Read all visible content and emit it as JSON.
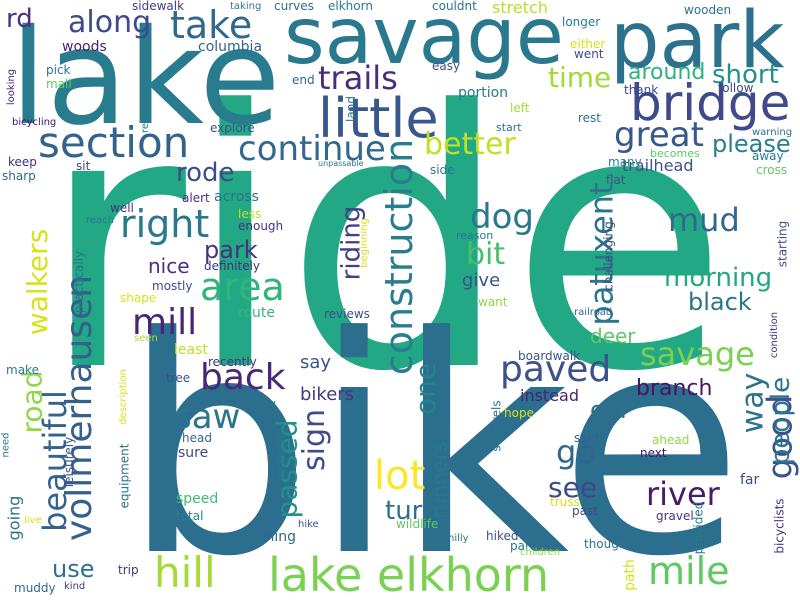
{
  "words": [
    {
      "text": "ride",
      "color": "#22a884"
    },
    {
      "text": "bike",
      "color": "#2c6e8e"
    },
    {
      "text": "lake",
      "color": "#287c8e"
    },
    {
      "text": "savage",
      "color": "#2a788e"
    },
    {
      "text": "park",
      "color": "#2d718e"
    },
    {
      "text": "lake elkhorn",
      "color": "#7ad151"
    },
    {
      "text": "bridge",
      "color": "#3e4a89"
    },
    {
      "text": "little",
      "color": "#38588c"
    },
    {
      "text": "section",
      "color": "#33638d"
    },
    {
      "text": "trails",
      "color": "#472d7b"
    },
    {
      "text": "take",
      "color": "#31688e"
    },
    {
      "text": "along",
      "color": "#3e4a89"
    },
    {
      "text": "continue",
      "color": "#31688e"
    },
    {
      "text": "right",
      "color": "#2a788e"
    },
    {
      "text": "area",
      "color": "#2fb47c"
    },
    {
      "text": "great",
      "color": "#38588c"
    },
    {
      "text": "better",
      "color": "#c2df23"
    },
    {
      "text": "time",
      "color": "#a2da37"
    },
    {
      "text": "short",
      "color": "#21918c"
    },
    {
      "text": "around",
      "color": "#2db27d"
    },
    {
      "text": "please",
      "color": "#277f8e"
    },
    {
      "text": "construction",
      "color": "#287d8e"
    },
    {
      "text": "vollmerhausen",
      "color": "#355f8d"
    },
    {
      "text": "road",
      "color": "#8fd744"
    },
    {
      "text": "walkers",
      "color": "#d8e219"
    },
    {
      "text": "beautiful",
      "color": "#33638d"
    },
    {
      "text": "mill",
      "color": "#482576"
    },
    {
      "text": "rode",
      "color": "#3e4c8a"
    },
    {
      "text": "patuxent",
      "color": "#2c738e"
    },
    {
      "text": "mud",
      "color": "#31688e"
    },
    {
      "text": "morning",
      "color": "#22a884"
    },
    {
      "text": "dog",
      "color": "#2a788e"
    },
    {
      "text": "bit",
      "color": "#44bf70"
    },
    {
      "text": "savage",
      "color": "#7ad151"
    },
    {
      "text": "back",
      "color": "#482878"
    },
    {
      "text": "paved",
      "color": "#3b528b"
    },
    {
      "text": "saw",
      "color": "#2c738e"
    },
    {
      "text": "lot",
      "color": "#fde725"
    },
    {
      "text": "hill",
      "color": "#a5db36"
    },
    {
      "text": "mile",
      "color": "#5ec962"
    },
    {
      "text": "river",
      "color": "#481a6c"
    },
    {
      "text": "good",
      "color": "#3b528b"
    },
    {
      "text": "way",
      "color": "#2c738e"
    },
    {
      "text": "people",
      "color": "#2c728e"
    },
    {
      "text": "go",
      "color": "#32658e"
    },
    {
      "text": "passed",
      "color": "#21918c"
    },
    {
      "text": "sign",
      "color": "#3e4c8a"
    },
    {
      "text": "riding",
      "color": "#433e85"
    },
    {
      "text": "one",
      "color": "#26828e"
    },
    {
      "text": "turn",
      "color": "#2d708e"
    },
    {
      "text": "see",
      "color": "#3e4989"
    },
    {
      "text": "old",
      "color": "#2d708e"
    },
    {
      "text": "black",
      "color": "#2c738e"
    },
    {
      "text": "branch",
      "color": "#481467"
    },
    {
      "text": "deer",
      "color": "#5ec962"
    },
    {
      "text": "use",
      "color": "#2c728e"
    },
    {
      "text": "park",
      "color": "#46327e"
    },
    {
      "text": "nice",
      "color": "#46327e"
    },
    {
      "text": "give",
      "color": "#3b528b"
    },
    {
      "text": "say",
      "color": "#3b528b"
    },
    {
      "text": "bikers",
      "color": "#453781"
    },
    {
      "text": "runners",
      "color": "#2a788e"
    },
    {
      "text": "instead",
      "color": "#482475"
    },
    {
      "text": "rd",
      "color": "#46327e"
    },
    {
      "text": "woods",
      "color": "#481f70"
    },
    {
      "text": "columbia",
      "color": "#33638d"
    },
    {
      "text": "trailhead",
      "color": "#3b528b"
    },
    {
      "text": "stretch",
      "color": "#b5de2b"
    },
    {
      "text": "portion",
      "color": "#2a788e"
    },
    {
      "text": "mostly",
      "color": "#3f4788"
    },
    {
      "text": "route",
      "color": "#35b779"
    },
    {
      "text": "least",
      "color": "#bddf26"
    },
    {
      "text": "going",
      "color": "#2c738e"
    },
    {
      "text": "speed",
      "color": "#3dbc74"
    },
    {
      "text": "head",
      "color": "#31688e"
    },
    {
      "text": "sure",
      "color": "#3e4989"
    },
    {
      "text": "total",
      "color": "#26828e"
    },
    {
      "text": "thing",
      "color": "#30698e"
    },
    {
      "text": "trip",
      "color": "#46337f"
    },
    {
      "text": "hiked",
      "color": "#3b528b"
    },
    {
      "text": "part",
      "color": "#2d718e"
    },
    {
      "text": "though",
      "color": "#2c738e"
    },
    {
      "text": "gravel",
      "color": "#46337f"
    },
    {
      "text": "far",
      "color": "#3e4c8a"
    },
    {
      "text": "next",
      "color": "#481467"
    },
    {
      "text": "past",
      "color": "#3e4c8a"
    },
    {
      "text": "ahead",
      "color": "#8fd744"
    },
    {
      "text": "truss",
      "color": "#d8e219"
    },
    {
      "text": "said",
      "color": "#32648e"
    },
    {
      "text": "hope",
      "color": "#d8e219"
    },
    {
      "text": "squirrels",
      "color": "#2d708e"
    },
    {
      "text": "boardwalk",
      "color": "#3b528b"
    },
    {
      "text": "sidewalk",
      "color": "#433e85"
    },
    {
      "text": "taking",
      "color": "#2c738e"
    },
    {
      "text": "curves",
      "color": "#30698e"
    },
    {
      "text": "elkhorn",
      "color": "#2a788e"
    },
    {
      "text": "couldnt",
      "color": "#2c728e"
    },
    {
      "text": "wooden",
      "color": "#2c738e"
    },
    {
      "text": "longer",
      "color": "#2a788e"
    },
    {
      "text": "either",
      "color": "#d8e219"
    },
    {
      "text": "went",
      "color": "#3e4989"
    },
    {
      "text": "pick",
      "color": "#2c738e"
    },
    {
      "text": "mall",
      "color": "#5ec962"
    },
    {
      "text": "easy",
      "color": "#3b528b"
    },
    {
      "text": "end",
      "color": "#31688e"
    },
    {
      "text": "thank",
      "color": "#3e4c8a"
    },
    {
      "text": "follow",
      "color": "#3e4989"
    },
    {
      "text": "rest",
      "color": "#2c738e"
    },
    {
      "text": "start",
      "color": "#2c738e"
    },
    {
      "text": "left",
      "color": "#a5db36"
    },
    {
      "text": "explore",
      "color": "#3b528b"
    },
    {
      "text": "recommend",
      "color": "#2a788e"
    },
    {
      "text": "looking",
      "color": "#482475"
    },
    {
      "text": "bicycling",
      "color": "#471063"
    },
    {
      "text": "land",
      "color": "#2d718e"
    },
    {
      "text": "warning",
      "color": "#2d718e"
    },
    {
      "text": "away",
      "color": "#2a788e"
    },
    {
      "text": "cross",
      "color": "#5ec962"
    },
    {
      "text": "becomes",
      "color": "#5ec962"
    },
    {
      "text": "many",
      "color": "#26828e"
    },
    {
      "text": "flat",
      "color": "#3b528b"
    },
    {
      "text": "side",
      "color": "#2c738e"
    },
    {
      "text": "unpassable",
      "color": "#2a788e"
    },
    {
      "text": "keep",
      "color": "#46327e"
    },
    {
      "text": "sit",
      "color": "#3e4989"
    },
    {
      "text": "sharp",
      "color": "#30698e"
    },
    {
      "text": "alert",
      "color": "#46327e"
    },
    {
      "text": "across",
      "color": "#2c738e"
    },
    {
      "text": "well",
      "color": "#46337f"
    },
    {
      "text": "less",
      "color": "#bddf26"
    },
    {
      "text": "enough",
      "color": "#46327e"
    },
    {
      "text": "reach",
      "color": "#2a788e"
    },
    {
      "text": "beginning",
      "color": "#d8e219"
    },
    {
      "text": "reason",
      "color": "#2a788e"
    },
    {
      "text": "definitely",
      "color": "#46327e"
    },
    {
      "text": "practically",
      "color": "#2c738e"
    },
    {
      "text": "challenging",
      "color": "#3b528b"
    },
    {
      "text": "starting",
      "color": "#3e4c8a"
    },
    {
      "text": "want",
      "color": "#8fd744"
    },
    {
      "text": "shape",
      "color": "#d8e219"
    },
    {
      "text": "reviews",
      "color": "#3e4c8a"
    },
    {
      "text": "railroad",
      "color": "#31688e"
    },
    {
      "text": "condition",
      "color": "#46327e"
    },
    {
      "text": "seen",
      "color": "#a5db36"
    },
    {
      "text": "recently",
      "color": "#46327e"
    },
    {
      "text": "tree",
      "color": "#3b528b"
    },
    {
      "text": "sunday",
      "color": "#2c738e"
    },
    {
      "text": "make",
      "color": "#2a788e"
    },
    {
      "text": "description",
      "color": "#d8e219"
    },
    {
      "text": "leisurely",
      "color": "#3b528b"
    },
    {
      "text": "equipment",
      "color": "#2c738e"
    },
    {
      "text": "peaceful",
      "color": "#2a788e"
    },
    {
      "text": "need",
      "color": "#2a788e"
    },
    {
      "text": "live",
      "color": "#d8e219"
    },
    {
      "text": "muddy",
      "color": "#30698e"
    },
    {
      "text": "kind",
      "color": "#46327e"
    },
    {
      "text": "hike",
      "color": "#3b528b"
    },
    {
      "text": "hilly",
      "color": "#2c738e"
    },
    {
      "text": "wildlife",
      "color": "#5ec962"
    },
    {
      "text": "children",
      "color": "#8fd744"
    },
    {
      "text": "provided",
      "color": "#2a788e"
    },
    {
      "text": "path",
      "color": "#d8e219"
    },
    {
      "text": "bicyclists",
      "color": "#46327e"
    }
  ]
}
